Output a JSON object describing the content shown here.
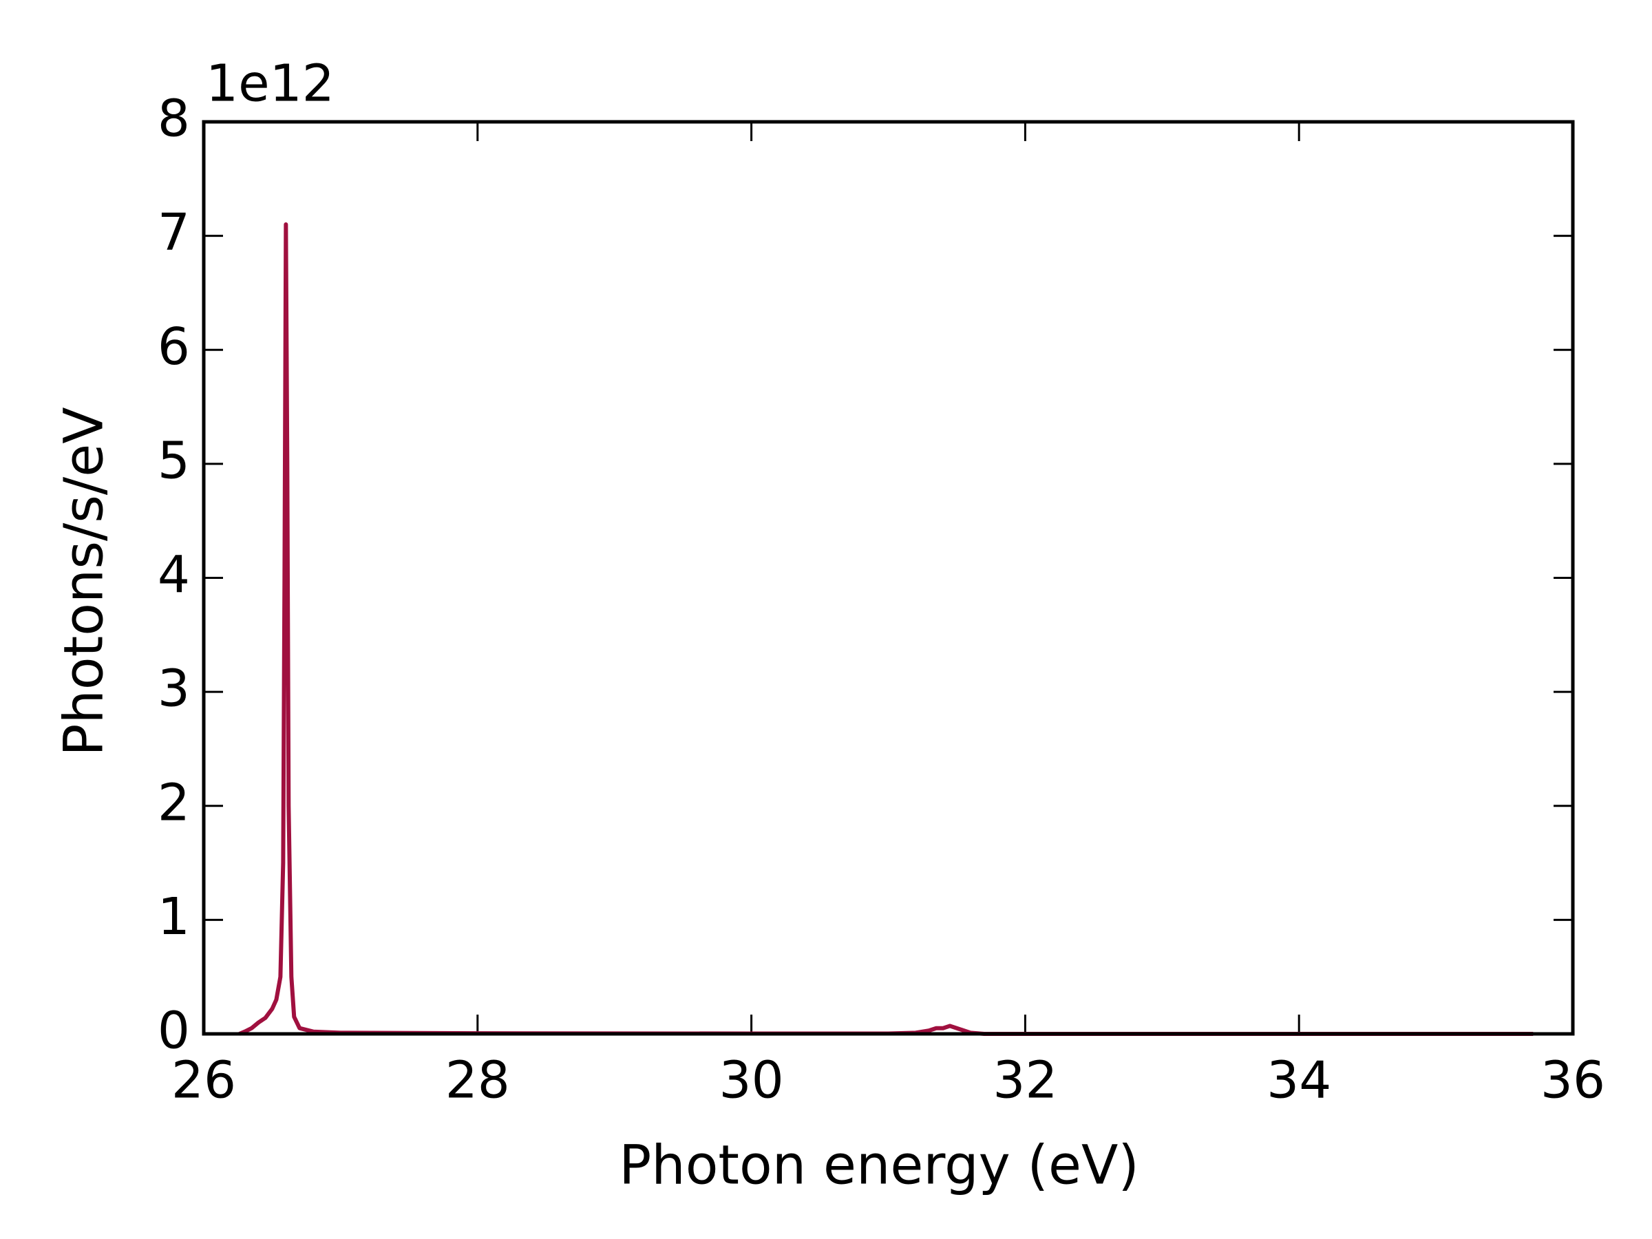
{
  "chart_data": {
    "type": "line",
    "x_label": "Photon energy (eV)",
    "y_label": "Photons/s/eV",
    "y_offset_label": "1e12",
    "x": [
      26.26,
      26.3,
      26.35,
      26.4,
      26.45,
      26.5,
      26.53,
      26.56,
      26.58,
      26.59,
      26.6,
      26.61,
      26.62,
      26.64,
      26.66,
      26.7,
      26.8,
      27.0,
      28.0,
      30.0,
      31.0,
      31.2,
      31.3,
      31.35,
      31.4,
      31.45,
      31.5,
      31.6,
      31.7,
      35.71
    ],
    "series": [
      {
        "color": "#a0103f",
        "values": [
          0,
          0.02,
          0.05,
          0.1,
          0.14,
          0.22,
          0.3,
          0.5,
          1.5,
          4.0,
          7.1,
          5.0,
          2.0,
          0.5,
          0.15,
          0.05,
          0.02,
          0.01,
          0.005,
          0.003,
          0.003,
          0.01,
          0.03,
          0.05,
          0.05,
          0.07,
          0.05,
          0.01,
          0,
          0
        ]
      }
    ],
    "xlim": [
      26,
      36
    ],
    "xticks": [
      26,
      28,
      30,
      32,
      34,
      36
    ],
    "ylim": [
      0,
      8
    ],
    "yticks": [
      0,
      1,
      2,
      3,
      4,
      5,
      6,
      7,
      8
    ],
    "grid": false
  }
}
